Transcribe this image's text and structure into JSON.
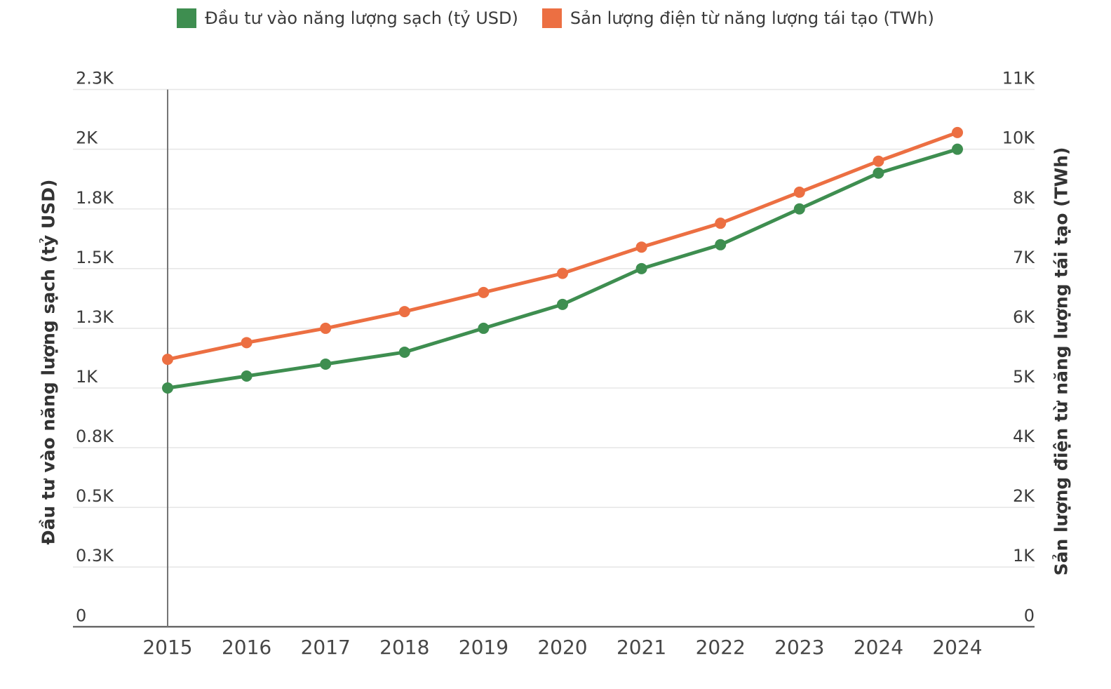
{
  "chart_data": {
    "type": "line",
    "title": "",
    "grid": true,
    "legend_position": "top",
    "marker": "circle",
    "categories": [
      "2015",
      "2016",
      "2017",
      "2018",
      "2019",
      "2020",
      "2021",
      "2022",
      "2023",
      "2024",
      "2024"
    ],
    "series": [
      {
        "key": "clean-energy-investment",
        "name": "Đầu tư vào năng lượng sạch (tỷ USD)",
        "color": "#3e8e50",
        "axis": "left",
        "values": [
          1000,
          1050,
          1100,
          1150,
          1250,
          1350,
          1500,
          1600,
          1750,
          1900,
          2000
        ]
      },
      {
        "key": "renewable-generation",
        "name": "Sản lượng điện từ năng lượng tái tạo (TWh)",
        "color": "#ec6f42",
        "axis": "right",
        "values": [
          5600,
          5950,
          6250,
          6600,
          7000,
          7400,
          7950,
          8450,
          9100,
          9750,
          10350
        ]
      }
    ],
    "left_axis": {
      "title": "Đầu tư vào năng lượng sạch (tỷ USD)",
      "range": [
        0,
        2250
      ],
      "tick_labels": [
        "0",
        "0.3K",
        "0.5K",
        "0.8K",
        "1K",
        "1.3K",
        "1.5K",
        "1.8K",
        "2K",
        "2.3K"
      ]
    },
    "right_axis": {
      "title": "Sản lượng điện từ năng lượng tái tạo (TWh)",
      "range": [
        0,
        11250
      ],
      "tick_labels": [
        "0",
        "1K",
        "2K",
        "4K",
        "5K",
        "6K",
        "7K",
        "8K",
        "10K",
        "11K"
      ]
    },
    "x_axis": {
      "labels": [
        "2015",
        "2016",
        "2017",
        "2018",
        "2019",
        "2020",
        "2021",
        "2022",
        "2023",
        "2024",
        "2024"
      ]
    }
  }
}
